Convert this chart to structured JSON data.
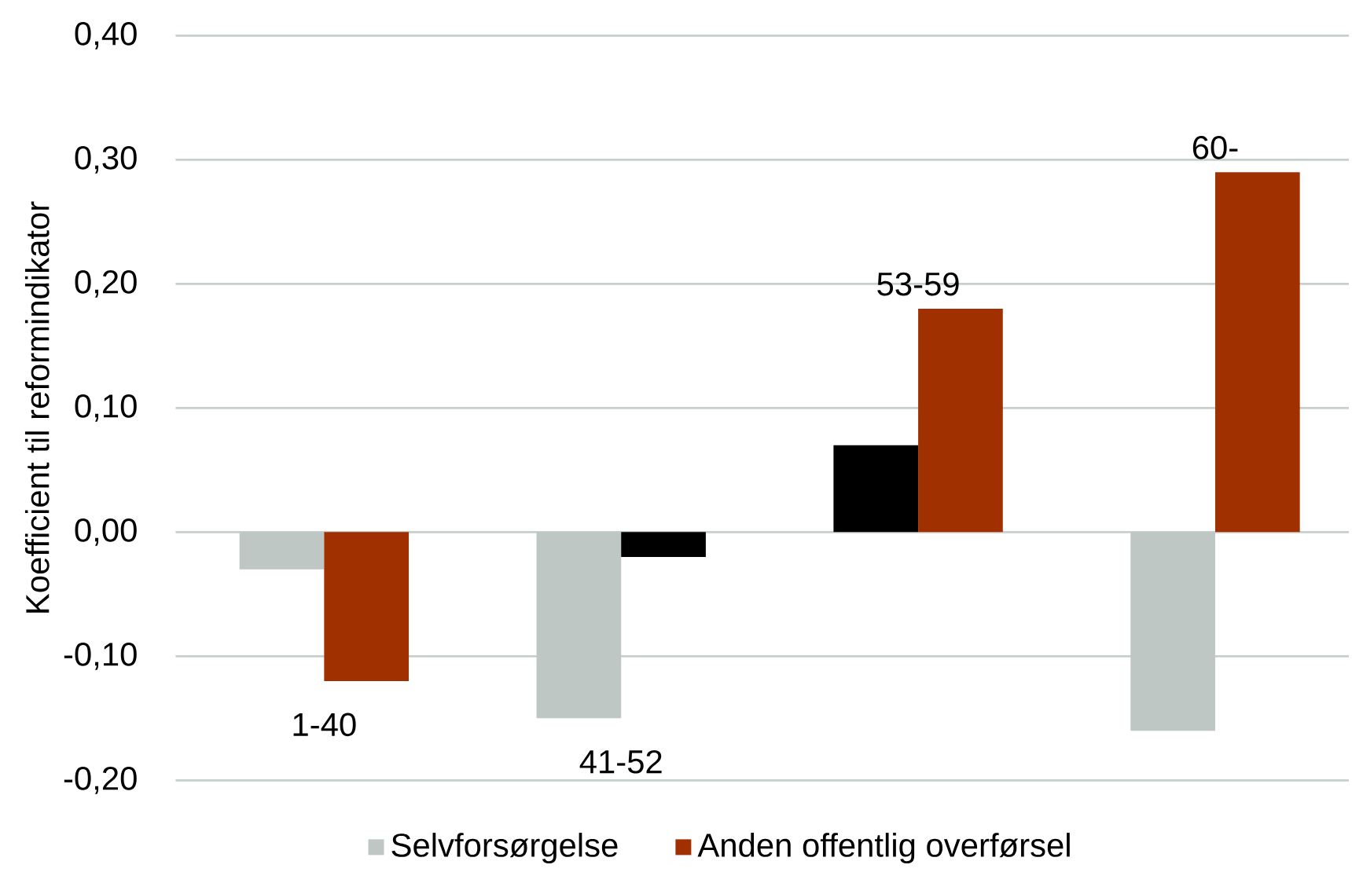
{
  "chart_data": {
    "type": "bar",
    "ylabel": "Koefficient til reformindikator",
    "categories": [
      "1-40",
      "41-52",
      "53-59",
      "60-"
    ],
    "series": [
      {
        "name": "Selvforsørgelse",
        "color": "#bfc7c5",
        "colors": [
          "#bfc7c5",
          "#bfc7c5",
          "#000000",
          "#bfc7c5"
        ],
        "values": [
          -0.03,
          -0.15,
          0.07,
          -0.16
        ]
      },
      {
        "name": "Anden offentlig overførsel",
        "color": "#a03000",
        "colors": [
          "#a03000",
          "#000000",
          "#a03000",
          "#a03000"
        ],
        "values": [
          -0.12,
          -0.02,
          0.18,
          0.29
        ]
      }
    ],
    "ylim": [
      -0.2,
      0.4
    ],
    "yticks": [
      {
        "value": -0.2,
        "label": "-0,20"
      },
      {
        "value": -0.1,
        "label": "-0,10"
      },
      {
        "value": 0,
        "label": "0,00"
      },
      {
        "value": 0.1,
        "label": "0,10"
      },
      {
        "value": 0.2,
        "label": "0,20"
      },
      {
        "value": 0.3,
        "label": "0,30"
      },
      {
        "value": 0.4,
        "label": "0,40"
      }
    ],
    "grid": "y",
    "legend": "bottom"
  }
}
